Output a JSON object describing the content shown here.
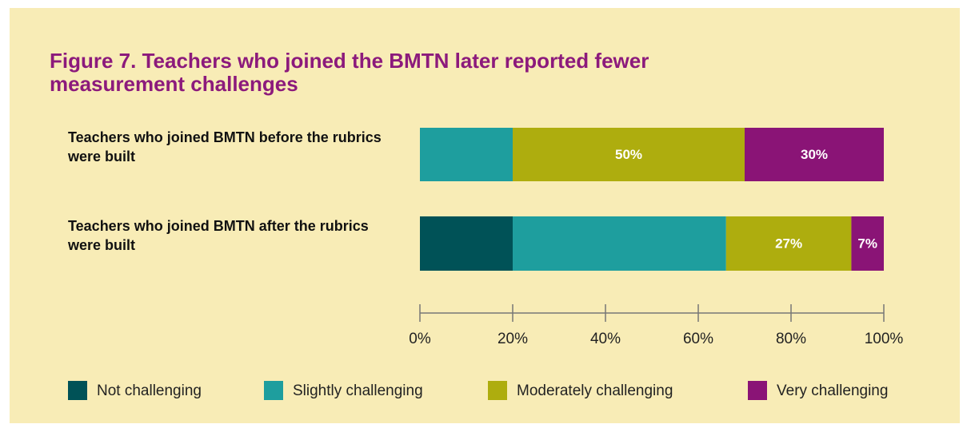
{
  "chart_data": {
    "type": "stacked-barh",
    "title": "Figure 7. Teachers who joined the BMTN later reported fewer measurement challenges",
    "categories": [
      "Teachers who joined BMTN before the rubrics were built",
      "Teachers who joined BMTN after the rubrics were built"
    ],
    "series": [
      {
        "name": "Not challenging",
        "color": "#005257",
        "values": [
          0,
          20
        ]
      },
      {
        "name": "Slightly challenging",
        "color": "#1e9e9e",
        "values": [
          20,
          46
        ]
      },
      {
        "name": "Moderately challenging",
        "color": "#aead0e",
        "values": [
          50,
          27
        ],
        "value_labels": [
          "50%",
          "27%"
        ]
      },
      {
        "name": "Very challenging",
        "color": "#8a1476",
        "values": [
          30,
          7
        ],
        "value_labels": [
          "30%",
          "7%"
        ]
      }
    ],
    "xlim": [
      0,
      100
    ],
    "xticks": [
      {
        "value": 0,
        "label": "0%"
      },
      {
        "value": 20,
        "label": "20%"
      },
      {
        "value": 40,
        "label": "40%"
      },
      {
        "value": 60,
        "label": "60%"
      },
      {
        "value": 80,
        "label": "80%"
      },
      {
        "value": 100,
        "label": "100%"
      }
    ],
    "legend": "bottom"
  }
}
